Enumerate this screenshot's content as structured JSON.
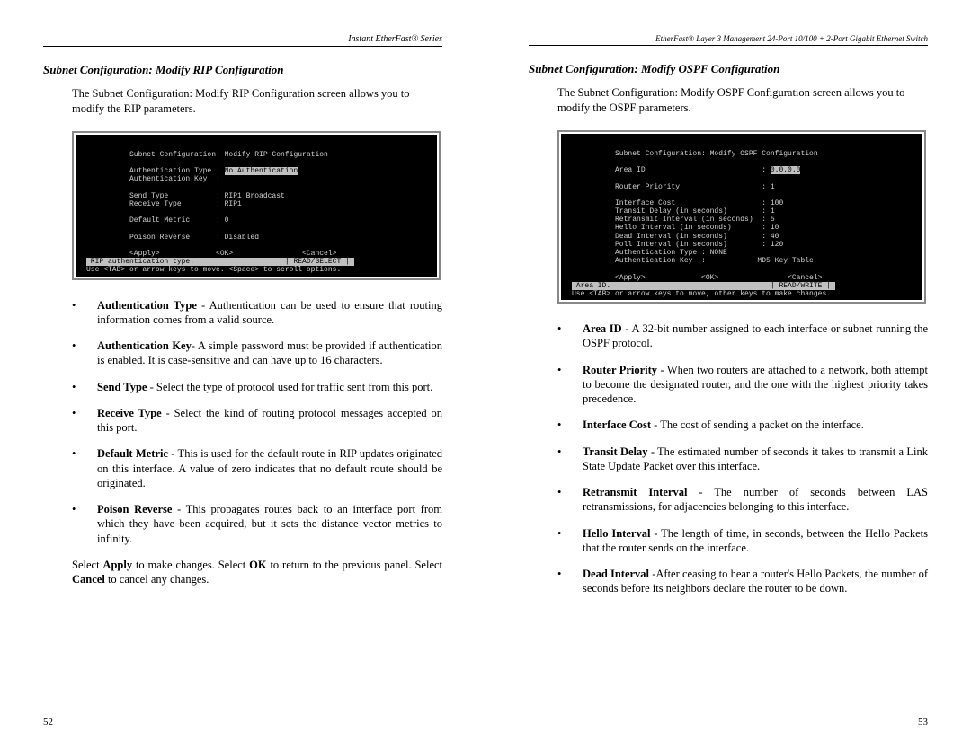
{
  "left": {
    "header": "Instant EtherFast® Series",
    "title": "Subnet Configuration: Modify RIP Configuration",
    "intro": "The Subnet Configuration: Modify RIP Configuration screen allows you to modify the RIP parameters.",
    "terminal": {
      "title": "Subnet Configuration: Modify RIP Configuration",
      "rows": [
        {
          "label": "Authentication Type",
          "sep": ":",
          "value": "No Authentication",
          "hl": true
        },
        {
          "label": "Authentication Key ",
          "sep": ":",
          "value": ""
        },
        {
          "label": "",
          "sep": "",
          "value": ""
        },
        {
          "label": "Send Type          ",
          "sep": ":",
          "value": "RIP1 Broadcast"
        },
        {
          "label": "Receive Type       ",
          "sep": ":",
          "value": "RIP1"
        },
        {
          "label": "",
          "sep": "",
          "value": ""
        },
        {
          "label": "Default Metric     ",
          "sep": ":",
          "value": "0"
        },
        {
          "label": "",
          "sep": "",
          "value": ""
        },
        {
          "label": "Poison Reverse     ",
          "sep": ":",
          "value": "Disabled"
        }
      ],
      "actions": [
        "<Apply>",
        "<OK>",
        "<Cancel>"
      ],
      "status_left": "RIP authentication type.",
      "status_right": "| READ/SELECT |",
      "hint": "Use <TAB> or arrow keys to move. <Space> to scroll options."
    },
    "bullets": [
      {
        "term": "Authentication Type",
        "text": " - Authentication can be used to ensure that routing information comes from a valid source."
      },
      {
        "term": "Authentication Key",
        "text": "- A simple password must be provided if authentication is enabled. It is case-sensitive and can have up to 16 characters."
      },
      {
        "term": "Send Type",
        "text": " - Select the type of protocol used for traffic sent from this port."
      },
      {
        "term": "Receive Type",
        "text": " - Select the kind of routing protocol messages accepted on this port."
      },
      {
        "term": "Default Metric",
        "text": " - This is used for the default route in RIP updates originated on this interface. A value of zero indicates that no default route should be originated."
      },
      {
        "term": "Poison Reverse",
        "text": " - This propagates routes back to an interface port from which they have been acquired, but it sets the distance vector metrics to infinity."
      }
    ],
    "tail_parts": [
      "Select ",
      "Apply",
      " to make changes. Select ",
      "OK",
      " to return to the previous panel. Select ",
      "Cancel",
      " to cancel any changes."
    ],
    "pagenum": "52"
  },
  "right": {
    "header": "EtherFast® Layer 3 Management 24-Port 10/100 + 2-Port Gigabit Ethernet Switch",
    "title": "Subnet Configuration: Modify OSPF Configuration",
    "intro": "The Subnet Configuration: Modify OSPF Configuration screen allows you to modify the OSPF parameters.",
    "terminal": {
      "title": "Subnet Configuration: Modify OSPF Configuration",
      "rows": [
        {
          "label": "Area ID                          ",
          "sep": ":",
          "value": "0.0.0.0",
          "hl": true
        },
        {
          "label": "",
          "sep": "",
          "value": ""
        },
        {
          "label": "Router Priority                  ",
          "sep": ":",
          "value": "1"
        },
        {
          "label": "",
          "sep": "",
          "value": ""
        },
        {
          "label": "Interface Cost                   ",
          "sep": ":",
          "value": "100"
        },
        {
          "label": "Transit Delay (in seconds)       ",
          "sep": ":",
          "value": "1"
        },
        {
          "label": "Retransmit Interval (in seconds) ",
          "sep": ":",
          "value": "5"
        },
        {
          "label": "Hello Interval (in seconds)      ",
          "sep": ":",
          "value": "10"
        },
        {
          "label": "Dead Interval (in seconds)       ",
          "sep": ":",
          "value": "40"
        },
        {
          "label": "Poll Interval (in seconds)       ",
          "sep": ":",
          "value": "120"
        },
        {
          "label": "Authentication Type : NONE",
          "sep": "",
          "value": ""
        },
        {
          "label": "Authentication Key  :            ",
          "sep": "",
          "value": "MD5 Key Table"
        }
      ],
      "actions": [
        "<Apply>",
        "<OK>",
        "<Cancel>"
      ],
      "status_left": "Area ID.",
      "status_right": "| READ/WRITE |",
      "hint": "Use <TAB> or arrow keys to move, other keys to make changes."
    },
    "bullets": [
      {
        "term": "Area ID",
        "text": " - A 32-bit number assigned to each interface or subnet running the OSPF protocol."
      },
      {
        "term": "Router Priority",
        "text": " - When two routers are attached to a network, both attempt to become the designated router, and the one with the highest priority takes precedence."
      },
      {
        "term": "Interface Cost",
        "text": " - The cost of sending a packet on the interface."
      },
      {
        "term": "Transit Delay",
        "text": " - The estimated number of seconds it takes to transmit a Link State Update Packet over this interface."
      },
      {
        "term": "Retransmit Interval",
        "text": " - The number of seconds between LAS retransmissions, for adjacencies belonging to this interface."
      },
      {
        "term": "Hello Interval",
        "text": " - The length of time, in seconds, between the Hello Packets that the router sends on the interface."
      },
      {
        "term": "Dead Interval",
        "text": " -After ceasing to hear a router's Hello Packets, the number of seconds before its neighbors declare the router to be down."
      }
    ],
    "pagenum": "53"
  }
}
